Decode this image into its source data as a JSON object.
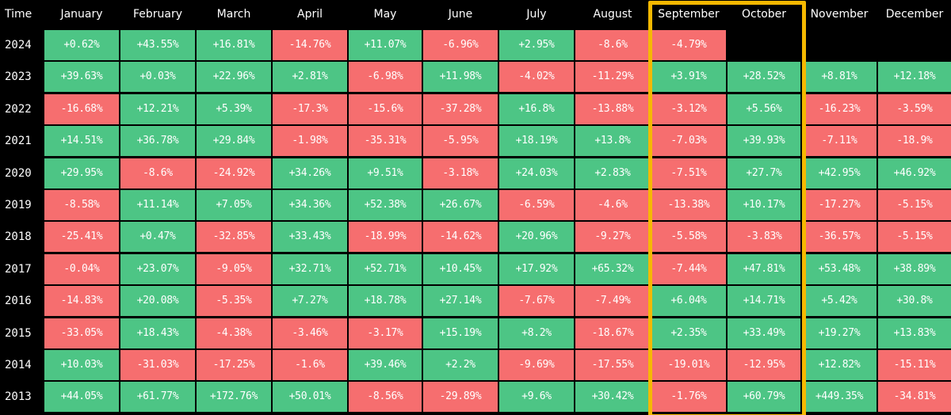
{
  "chart_data": {
    "type": "table",
    "columns": [
      "Time",
      "January",
      "February",
      "March",
      "April",
      "May",
      "June",
      "July",
      "August",
      "September",
      "October",
      "November",
      "December"
    ],
    "highlighted_columns": [
      "September",
      "October"
    ],
    "colors": {
      "positive": "#4dc585",
      "negative": "#f66e6f",
      "background": "#000000",
      "text": "#ffffff",
      "highlight": "#f5b800"
    },
    "rows": [
      {
        "year": "2024",
        "values": [
          "+0.62%",
          "+43.55%",
          "+16.81%",
          "-14.76%",
          "+11.07%",
          "-6.96%",
          "+2.95%",
          "-8.6%",
          "-4.79%",
          "",
          "",
          ""
        ]
      },
      {
        "year": "2023",
        "values": [
          "+39.63%",
          "+0.03%",
          "+22.96%",
          "+2.81%",
          "-6.98%",
          "+11.98%",
          "-4.02%",
          "-11.29%",
          "+3.91%",
          "+28.52%",
          "+8.81%",
          "+12.18%"
        ]
      },
      {
        "year": "2022",
        "values": [
          "-16.68%",
          "+12.21%",
          "+5.39%",
          "-17.3%",
          "-15.6%",
          "-37.28%",
          "+16.8%",
          "-13.88%",
          "-3.12%",
          "+5.56%",
          "-16.23%",
          "-3.59%"
        ]
      },
      {
        "year": "2021",
        "values": [
          "+14.51%",
          "+36.78%",
          "+29.84%",
          "-1.98%",
          "-35.31%",
          "-5.95%",
          "+18.19%",
          "+13.8%",
          "-7.03%",
          "+39.93%",
          "-7.11%",
          "-18.9%"
        ]
      },
      {
        "year": "2020",
        "values": [
          "+29.95%",
          "-8.6%",
          "-24.92%",
          "+34.26%",
          "+9.51%",
          "-3.18%",
          "+24.03%",
          "+2.83%",
          "-7.51%",
          "+27.7%",
          "+42.95%",
          "+46.92%"
        ]
      },
      {
        "year": "2019",
        "values": [
          "-8.58%",
          "+11.14%",
          "+7.05%",
          "+34.36%",
          "+52.38%",
          "+26.67%",
          "-6.59%",
          "-4.6%",
          "-13.38%",
          "+10.17%",
          "-17.27%",
          "-5.15%"
        ]
      },
      {
        "year": "2018",
        "values": [
          "-25.41%",
          "+0.47%",
          "-32.85%",
          "+33.43%",
          "-18.99%",
          "-14.62%",
          "+20.96%",
          "-9.27%",
          "-5.58%",
          "-3.83%",
          "-36.57%",
          "-5.15%"
        ]
      },
      {
        "year": "2017",
        "values": [
          "-0.04%",
          "+23.07%",
          "-9.05%",
          "+32.71%",
          "+52.71%",
          "+10.45%",
          "+17.92%",
          "+65.32%",
          "-7.44%",
          "+47.81%",
          "+53.48%",
          "+38.89%"
        ]
      },
      {
        "year": "2016",
        "values": [
          "-14.83%",
          "+20.08%",
          "-5.35%",
          "+7.27%",
          "+18.78%",
          "+27.14%",
          "-7.67%",
          "-7.49%",
          "+6.04%",
          "+14.71%",
          "+5.42%",
          "+30.8%"
        ]
      },
      {
        "year": "2015",
        "values": [
          "-33.05%",
          "+18.43%",
          "-4.38%",
          "-3.46%",
          "-3.17%",
          "+15.19%",
          "+8.2%",
          "-18.67%",
          "+2.35%",
          "+33.49%",
          "+19.27%",
          "+13.83%"
        ]
      },
      {
        "year": "2014",
        "values": [
          "+10.03%",
          "-31.03%",
          "-17.25%",
          "-1.6%",
          "+39.46%",
          "+2.2%",
          "-9.69%",
          "-17.55%",
          "-19.01%",
          "-12.95%",
          "+12.82%",
          "-15.11%"
        ]
      },
      {
        "year": "2013",
        "values": [
          "+44.05%",
          "+61.77%",
          "+172.76%",
          "+50.01%",
          "-8.56%",
          "-29.89%",
          "+9.6%",
          "+30.42%",
          "-1.76%",
          "+60.79%",
          "+449.35%",
          "-34.81%"
        ]
      }
    ]
  }
}
